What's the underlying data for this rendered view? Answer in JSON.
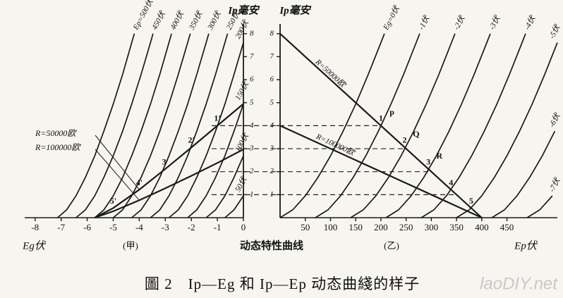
{
  "caption": "圖 2　Ip—Eg 和 Ip—Ep 动态曲綫的样子",
  "watermark": "laoDIY.net",
  "chart_data": [
    {
      "type": "line",
      "y_label": "Ip毫安",
      "x_label": "Eg伏",
      "panel": "(甲)",
      "note": "动态特性曲线",
      "xlim": [
        -8.4,
        0
      ],
      "ylim": [
        0,
        8.3
      ],
      "xticks": [
        -8,
        -7,
        -6,
        -5,
        -4,
        -3,
        -2,
        -1,
        0
      ],
      "yticks": [
        1,
        2,
        3,
        4,
        5,
        6,
        7,
        8
      ],
      "color": "#1a1a1a",
      "series": [
        {
          "name": "Ep=500伏",
          "x": [
            -7.14,
            -6.79,
            -6.43,
            -6.07,
            -5.71,
            -5.36,
            -5,
            -4.64,
            -4.29,
            -4.19
          ],
          "y": [
            0,
            0.34,
            0.95,
            1.75,
            2.69,
            3.76,
            4.94,
            6.23,
            7.61,
            8
          ]
        },
        {
          "name": "450伏",
          "x": [
            -6.43,
            -6.07,
            -5.71,
            -5.36,
            -5,
            -4.64,
            -4.29,
            -3.93,
            -3.57,
            -3.47
          ],
          "y": [
            0,
            0.34,
            0.95,
            1.75,
            2.69,
            3.76,
            4.94,
            6.23,
            7.61,
            8
          ]
        },
        {
          "name": "400伏",
          "x": [
            -5.71,
            -5.36,
            -5,
            -4.64,
            -4.29,
            -3.93,
            -3.57,
            -3.21,
            -2.86,
            -2.76
          ],
          "y": [
            0,
            0.34,
            0.95,
            1.75,
            2.69,
            3.76,
            4.94,
            6.23,
            7.61,
            8
          ]
        },
        {
          "name": "350伏",
          "x": [
            -5,
            -4.64,
            -4.29,
            -3.93,
            -3.57,
            -3.21,
            -2.86,
            -2.5,
            -2.14,
            -2.04
          ],
          "y": [
            0,
            0.34,
            0.95,
            1.75,
            2.69,
            3.76,
            4.94,
            6.23,
            7.61,
            8
          ]
        },
        {
          "name": "300伏",
          "x": [
            -4.29,
            -3.93,
            -3.57,
            -3.21,
            -2.86,
            -2.5,
            -2.14,
            -1.79,
            -1.43,
            -1.33
          ],
          "y": [
            0,
            0.34,
            0.95,
            1.75,
            2.69,
            3.76,
            4.94,
            6.23,
            7.61,
            8
          ]
        },
        {
          "name": "250伏",
          "x": [
            -3.57,
            -3.21,
            -2.86,
            -2.5,
            -2.14,
            -1.79,
            -1.43,
            -1.07,
            -0.71,
            -0.61
          ],
          "y": [
            0,
            0.34,
            0.95,
            1.75,
            2.69,
            3.76,
            4.94,
            6.23,
            7.61,
            8
          ]
        },
        {
          "name": "200伏",
          "x": [
            -2.86,
            -2.5,
            -2.14,
            -1.79,
            -1.43,
            -1.07,
            -0.71,
            -0.36,
            0
          ],
          "y": [
            0,
            0.34,
            0.95,
            1.75,
            2.69,
            3.76,
            4.94,
            6.23,
            7.61
          ]
        },
        {
          "name": "150伏",
          "x": [
            -2.14,
            -1.79,
            -1.43,
            -1.07,
            -0.71,
            -0.36,
            0
          ],
          "y": [
            0,
            0.34,
            0.95,
            1.75,
            2.69,
            3.76,
            4.94
          ]
        },
        {
          "name": "100伏",
          "x": [
            -1.43,
            -1.07,
            -0.71,
            -0.36,
            0
          ],
          "y": [
            0,
            0.34,
            0.95,
            1.75,
            2.69
          ]
        },
        {
          "name": "50伏",
          "x": [
            -0.71,
            -0.36,
            0
          ],
          "y": [
            0,
            0.34,
            0.95
          ]
        },
        {
          "name": "R=50000欧",
          "style": "load",
          "x": [
            -5.71,
            -5,
            -4,
            -3,
            -2,
            -1,
            0
          ],
          "y": [
            0,
            0.42,
            1.22,
            2.12,
            3.05,
            4,
            4.95
          ]
        },
        {
          "name": "R=100000欧",
          "style": "load",
          "x": [
            -5.71,
            -5,
            -4,
            -3,
            -2,
            -1,
            0
          ],
          "y": [
            0,
            0.28,
            0.76,
            1.28,
            1.82,
            2.38,
            2.97
          ]
        }
      ],
      "annotations": [
        {
          "text": "1'",
          "x": -1,
          "y": 4.3
        },
        {
          "text": "2'",
          "x": -2,
          "y": 3.35
        },
        {
          "text": "3'",
          "x": -3,
          "y": 2.4
        },
        {
          "text": "4'",
          "x": -4,
          "y": 1.5
        },
        {
          "text": "5'",
          "x": -5,
          "y": 0.7
        }
      ]
    },
    {
      "type": "line",
      "y_label": "Ip毫安",
      "x_label": "Ep伏",
      "panel": "(乙)",
      "xlim": [
        0,
        550
      ],
      "ylim": [
        0,
        8.3
      ],
      "xticks": [
        50,
        100,
        150,
        200,
        250,
        300,
        350,
        400,
        450
      ],
      "yticks": [
        1,
        2,
        3,
        4,
        5,
        6,
        7,
        8
      ],
      "color": "#1a1a1a",
      "guides": [
        4,
        3,
        2,
        1
      ],
      "series": [
        {
          "name": "Eg=0伏",
          "x": [
            0,
            25,
            50,
            75,
            100,
            125,
            150,
            175,
            200,
            207
          ],
          "y": [
            0,
            0.34,
            0.95,
            1.75,
            2.69,
            3.76,
            4.94,
            6.23,
            7.61,
            8
          ]
        },
        {
          "name": "-1伏",
          "x": [
            70,
            95,
            120,
            145,
            170,
            195,
            220,
            245,
            270,
            277
          ],
          "y": [
            0,
            0.34,
            0.95,
            1.75,
            2.69,
            3.76,
            4.94,
            6.23,
            7.61,
            8
          ]
        },
        {
          "name": "-2伏",
          "x": [
            140,
            165,
            190,
            215,
            240,
            265,
            290,
            315,
            340,
            347
          ],
          "y": [
            0,
            0.34,
            0.95,
            1.75,
            2.69,
            3.76,
            4.94,
            6.23,
            7.61,
            8
          ]
        },
        {
          "name": "-3伏",
          "x": [
            210,
            235,
            260,
            285,
            310,
            335,
            360,
            385,
            410,
            417
          ],
          "y": [
            0,
            0.34,
            0.95,
            1.75,
            2.69,
            3.76,
            4.94,
            6.23,
            7.61,
            8
          ]
        },
        {
          "name": "-4伏",
          "x": [
            280,
            305,
            330,
            355,
            380,
            405,
            430,
            455,
            480,
            487
          ],
          "y": [
            0,
            0.34,
            0.95,
            1.75,
            2.69,
            3.76,
            4.94,
            6.23,
            7.61,
            8
          ]
        },
        {
          "name": "-5伏",
          "x": [
            350,
            375,
            400,
            425,
            450,
            475,
            500,
            525,
            550
          ],
          "y": [
            0,
            0.34,
            0.95,
            1.75,
            2.69,
            3.76,
            4.94,
            6.23,
            7.61
          ]
        },
        {
          "name": "-6伏",
          "x": [
            420,
            445,
            470,
            495,
            520,
            545
          ],
          "y": [
            0,
            0.34,
            0.95,
            1.75,
            2.69,
            3.76
          ]
        },
        {
          "name": "-7伏",
          "x": [
            490,
            515,
            540
          ],
          "y": [
            0,
            0.34,
            0.95
          ]
        },
        {
          "name": "R=50000欧",
          "style": "load",
          "x": [
            0,
            400
          ],
          "y": [
            8,
            0
          ]
        },
        {
          "name": "R=100000欧",
          "style": "load",
          "x": [
            0,
            400
          ],
          "y": [
            4,
            0
          ]
        }
      ],
      "annotations": [
        {
          "text": "1",
          "x": 200,
          "y": 4.3
        },
        {
          "text": "2",
          "x": 247,
          "y": 3.35
        },
        {
          "text": "3",
          "x": 294,
          "y": 2.4
        },
        {
          "text": "4",
          "x": 339,
          "y": 1.5
        },
        {
          "text": "5",
          "x": 379,
          "y": 0.7
        },
        {
          "text": "p",
          "x": 222,
          "y": 4.55
        },
        {
          "text": "Q",
          "x": 270,
          "y": 3.6
        },
        {
          "text": "R",
          "x": 316,
          "y": 2.65
        }
      ]
    }
  ]
}
